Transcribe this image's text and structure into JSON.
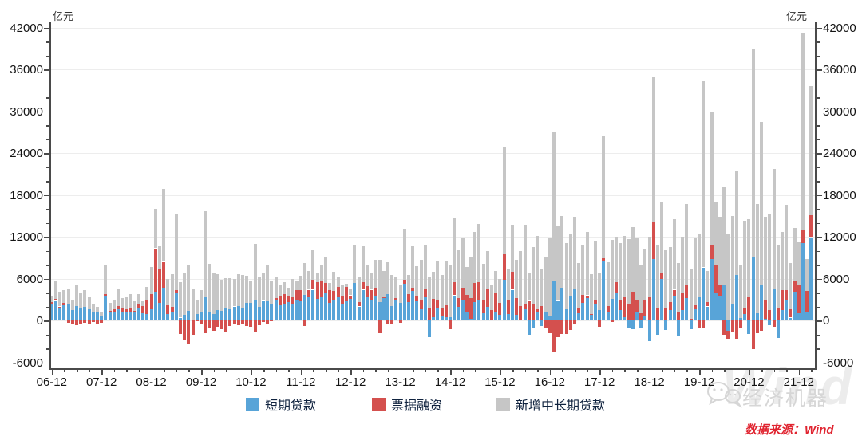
{
  "chart": {
    "unit_label": "亿元",
    "y_axis": {
      "min": -6000,
      "max": 42000,
      "major_step": 6000,
      "minor_step": 2000,
      "tick_labels": [
        "-6000",
        "0",
        "6000",
        "12000",
        "18000",
        "24000",
        "30000",
        "36000",
        "42000"
      ]
    },
    "x_axis": {
      "tick_labels": [
        "06-12",
        "07-12",
        "08-12",
        "09-12",
        "10-12",
        "11-12",
        "12-12",
        "13-12",
        "14-12",
        "15-12",
        "16-12",
        "17-12",
        "18-12",
        "19-12",
        "20-12",
        "21-12"
      ],
      "minor_tick_every_months": 3
    },
    "legend": [
      {
        "label": "短期贷款",
        "color": "#58A4D8"
      },
      {
        "label": "票据融资",
        "color": "#D4504E"
      },
      {
        "label": "新增中长期贷款",
        "color": "#C6C6C6"
      }
    ],
    "source_note": "数据来源：Wind",
    "source_color": "#E02430",
    "watermark_text": "经济机器",
    "watermark_brand": "Wind"
  },
  "chart_data": {
    "type": "bar",
    "stacked": true,
    "unit": "亿元",
    "ylim": [
      -6000,
      42000
    ],
    "grid": true,
    "legend_position": "bottom",
    "x_start": "2006-12",
    "x_freq": "monthly",
    "months": [
      "2006-12",
      "2007-01",
      "2007-02",
      "2007-03",
      "2007-04",
      "2007-05",
      "2007-06",
      "2007-07",
      "2007-08",
      "2007-09",
      "2007-10",
      "2007-11",
      "2007-12",
      "2008-01",
      "2008-02",
      "2008-03",
      "2008-04",
      "2008-05",
      "2008-06",
      "2008-07",
      "2008-08",
      "2008-09",
      "2008-10",
      "2008-11",
      "2008-12",
      "2009-01",
      "2009-02",
      "2009-03",
      "2009-04",
      "2009-05",
      "2009-06",
      "2009-07",
      "2009-08",
      "2009-09",
      "2009-10",
      "2009-11",
      "2009-12",
      "2010-01",
      "2010-02",
      "2010-03",
      "2010-04",
      "2010-05",
      "2010-06",
      "2010-07",
      "2010-08",
      "2010-09",
      "2010-10",
      "2010-11",
      "2010-12",
      "2011-01",
      "2011-02",
      "2011-03",
      "2011-04",
      "2011-05",
      "2011-06",
      "2011-07",
      "2011-08",
      "2011-09",
      "2011-10",
      "2011-11",
      "2011-12",
      "2012-01",
      "2012-02",
      "2012-03",
      "2012-04",
      "2012-05",
      "2012-06",
      "2012-07",
      "2012-08",
      "2012-09",
      "2012-10",
      "2012-11",
      "2012-12",
      "2013-01",
      "2013-02",
      "2013-03",
      "2013-04",
      "2013-05",
      "2013-06",
      "2013-07",
      "2013-08",
      "2013-09",
      "2013-10",
      "2013-11",
      "2013-12",
      "2014-01",
      "2014-02",
      "2014-03",
      "2014-04",
      "2014-05",
      "2014-06",
      "2014-07",
      "2014-08",
      "2014-09",
      "2014-10",
      "2014-11",
      "2014-12",
      "2015-01",
      "2015-02",
      "2015-03",
      "2015-04",
      "2015-05",
      "2015-06",
      "2015-07",
      "2015-08",
      "2015-09",
      "2015-10",
      "2015-11",
      "2015-12",
      "2016-01",
      "2016-02",
      "2016-03",
      "2016-04",
      "2016-05",
      "2016-06",
      "2016-07",
      "2016-08",
      "2016-09",
      "2016-10",
      "2016-11",
      "2016-12",
      "2017-01",
      "2017-02",
      "2017-03",
      "2017-04",
      "2017-05",
      "2017-06",
      "2017-07",
      "2017-08",
      "2017-09",
      "2017-10",
      "2017-11",
      "2017-12",
      "2018-01",
      "2018-02",
      "2018-03",
      "2018-04",
      "2018-05",
      "2018-06",
      "2018-07",
      "2018-08",
      "2018-09",
      "2018-10",
      "2018-11",
      "2018-12",
      "2019-01",
      "2019-02",
      "2019-03",
      "2019-04",
      "2019-05",
      "2019-06",
      "2019-07",
      "2019-08",
      "2019-09",
      "2019-10",
      "2019-11",
      "2019-12",
      "2020-01",
      "2020-02",
      "2020-03",
      "2020-04",
      "2020-05",
      "2020-06",
      "2020-07",
      "2020-08",
      "2020-09",
      "2020-10",
      "2020-11",
      "2020-12",
      "2021-01",
      "2021-02",
      "2021-03",
      "2021-04",
      "2021-05",
      "2021-06",
      "2021-07",
      "2021-08",
      "2021-09",
      "2021-10",
      "2021-11",
      "2021-12",
      "2022-01",
      "2022-02",
      "2022-03"
    ],
    "series": [
      {
        "name": "短期贷款",
        "color": "#58A4D8",
        "values": [
          2300,
          2800,
          1800,
          2200,
          2300,
          1500,
          2100,
          1800,
          1900,
          1600,
          1300,
          1100,
          700,
          3500,
          1200,
          1300,
          1600,
          1300,
          1300,
          1200,
          1100,
          1800,
          1000,
          900,
          1600,
          4100,
          2500,
          4700,
          900,
          1100,
          3900,
          400,
          800,
          1400,
          0,
          900,
          1200,
          3300,
          1100,
          900,
          1500,
          1400,
          1800,
          1600,
          2000,
          2100,
          1700,
          2500,
          2500,
          3000,
          1900,
          2800,
          2700,
          2400,
          2900,
          2200,
          2400,
          2600,
          2300,
          2900,
          2800,
          3700,
          3300,
          4400,
          3100,
          3400,
          3900,
          2500,
          3000,
          3300,
          2300,
          2800,
          3100,
          5400,
          2000,
          4400,
          3400,
          2900,
          3500,
          2600,
          3200,
          3800,
          2100,
          2900,
          2500,
          5300,
          2600,
          4200,
          2700,
          1600,
          3300,
          -2400,
          500,
          1700,
          700,
          500,
          500,
          3600,
          2000,
          3000,
          1200,
          200,
          2600,
          3000,
          1000,
          1900,
          0,
          1100,
          800,
          5800,
          900,
          4400,
          800,
          0,
          1600,
          -2000,
          -1100,
          1100,
          -800,
          1300,
          700,
          5560,
          2800,
          4700,
          1600,
          3500,
          4500,
          1000,
          2500,
          3200,
          800,
          2300,
          1500,
          8600,
          1100,
          3100,
          4000,
          1500,
          500,
          -1000,
          -1200,
          1100,
          -1100,
          600,
          -3000,
          8850,
          -2000,
          5900,
          -1400,
          1500,
          3500,
          -2200,
          1500,
          3200,
          -1200,
          1600,
          3300,
          7600,
          2000,
          8800,
          4000,
          3500,
          5000,
          -1500,
          2400,
          6500,
          300,
          900,
          -1960,
          9000,
          1000,
          5000,
          200,
          -700,
          4500,
          -2500,
          1500,
          3000,
          400,
          4100,
          1000,
          11100,
          1200,
          11940
        ]
      },
      {
        "name": "票据融资",
        "color": "#D4504E",
        "values": [
          300,
          300,
          200,
          300,
          -300,
          -400,
          -700,
          -500,
          -300,
          -400,
          -200,
          -400,
          -300,
          300,
          200,
          300,
          500,
          400,
          300,
          500,
          300,
          600,
          1100,
          2100,
          2150,
          6240,
          4870,
          3700,
          1260,
          860,
          400,
          -1980,
          -2760,
          -3400,
          -2040,
          -100,
          -500,
          -1800,
          -1060,
          -1530,
          -900,
          -1200,
          -1600,
          -800,
          -400,
          -700,
          -600,
          -800,
          -900,
          -1700,
          -700,
          -200,
          -500,
          -100,
          300,
          1300,
          1400,
          900,
          1100,
          1500,
          1600,
          -800,
          1100,
          1400,
          2400,
          2300,
          1500,
          1800,
          1200,
          1500,
          1200,
          2000,
          500,
          0,
          600,
          1100,
          1500,
          1500,
          1200,
          -1780,
          200,
          -500,
          -400,
          300,
          -300,
          500,
          1200,
          500,
          800,
          1400,
          1300,
          1730,
          2600,
          1300,
          1170,
          1700,
          -1200,
          1900,
          1200,
          1700,
          2500,
          3000,
          2800,
          2500,
          2000,
          2700,
          1500,
          2900,
          1700,
          3720,
          2000,
          2600,
          2390,
          2100,
          840,
          2800,
          2240,
          540,
          2090,
          -1010,
          -1840,
          -4520,
          -2420,
          -1980,
          -1980,
          -1400,
          -500,
          800,
          1200,
          400,
          100,
          600,
          -900,
          350,
          1000,
          -200,
          1450,
          1450,
          2950,
          2390,
          4100,
          1740,
          1060,
          2340,
          3400,
          5160,
          1700,
          1000,
          1870,
          1100,
          900,
          1280,
          2430,
          1790,
          210,
          620,
          -1000,
          -1000,
          600,
          2000,
          3900,
          1600,
          -2100,
          -1100,
          -1600,
          -2600,
          -1100,
          800,
          3340,
          -4090,
          -1860,
          -1530,
          2710,
          1500,
          -960,
          1800,
          2810,
          1350,
          1160,
          1610,
          4090,
          1790,
          3050,
          3190
        ]
      },
      {
        "name": "新增中长期贷款",
        "color": "#C6C6C6",
        "values": [
          900,
          2500,
          2100,
          1900,
          2200,
          1400,
          3100,
          2200,
          2500,
          1700,
          1000,
          800,
          600,
          4200,
          1100,
          1300,
          2500,
          1500,
          1700,
          2100,
          1300,
          1400,
          700,
          1800,
          3950,
          5700,
          3300,
          10500,
          3740,
          4700,
          11000,
          5100,
          6100,
          6500,
          4600,
          2000,
          3100,
          12400,
          7000,
          5800,
          5100,
          4400,
          4300,
          4500,
          3900,
          4500,
          4800,
          3900,
          3200,
          8000,
          4300,
          4100,
          5200,
          3200,
          3100,
          1500,
          1700,
          1200,
          2500,
          1200,
          2000,
          4500,
          2700,
          4300,
          1300,
          2200,
          3800,
          1100,
          2800,
          1400,
          1550,
          450,
          950,
          5300,
          3600,
          5100,
          3000,
          2300,
          4000,
          6100,
          3700,
          4500,
          4400,
          3100,
          2700,
          7400,
          2700,
          5900,
          4300,
          5700,
          6100,
          4500,
          3900,
          5600,
          4600,
          6300,
          7400,
          9200,
          6900,
          7100,
          4000,
          5800,
          7300,
          8300,
          5100,
          5400,
          3600,
          3100,
          3500,
          15380,
          4400,
          6700,
          5500,
          7800,
          11300,
          3900,
          8300,
          10500,
          5300,
          7700,
          11100,
          21490,
          10700,
          10300,
          9500,
          9000,
          10400,
          6400,
          7000,
          9100,
          5700,
          8500,
          5300,
          17500,
          6300,
          8400,
          6500,
          8100,
          8700,
          9300,
          9300,
          9000,
          6800,
          7200,
          8600,
          20970,
          9200,
          10100,
          8200,
          7900,
          10100,
          7000,
          8100,
          11700,
          7200,
          9600,
          9100,
          26700,
          4500,
          19200,
          9100,
          9800,
          14100,
          12500,
          12600,
          15000,
          7700,
          12600,
          11200,
          29850,
          15700,
          23450,
          12000,
          13700,
          17200,
          8900,
          8400,
          12200,
          6700,
          7560,
          6200,
          28420,
          4590,
          18440
        ]
      }
    ]
  }
}
